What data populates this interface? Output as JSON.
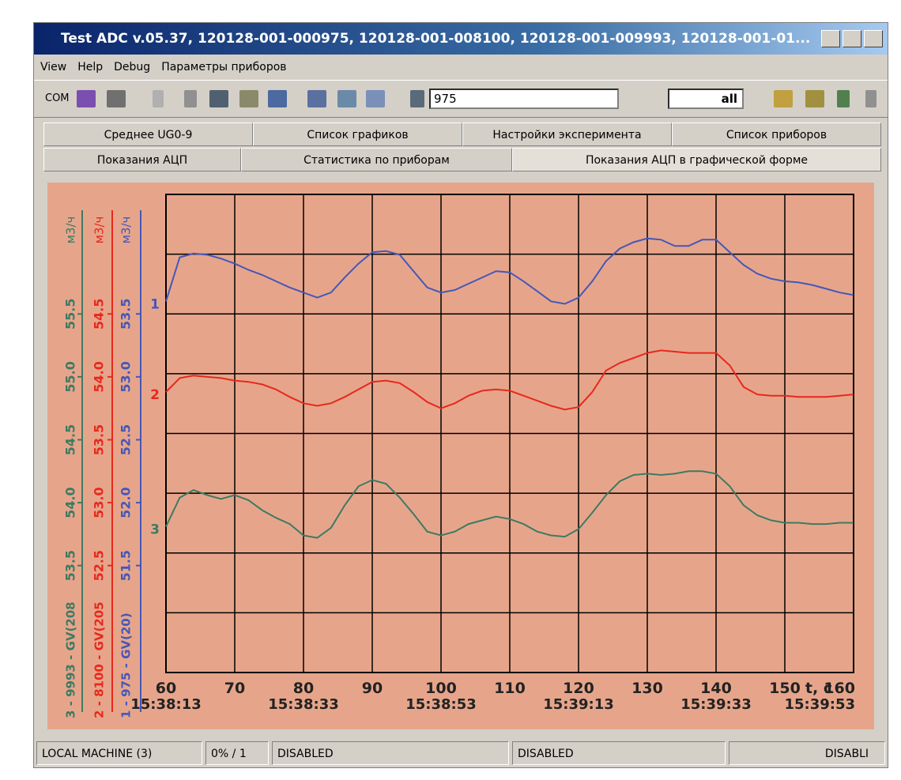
{
  "window": {
    "title": "Test ADC v.05.37, 120128-001-000975, 120128-001-008100, 120128-001-009993, 120128-001-01...",
    "menu": [
      "View",
      "Help",
      "Debug",
      "Параметры приборов"
    ],
    "toolbar": {
      "label": "COM",
      "device": "975",
      "filter": "all"
    },
    "tabs": [
      [
        "Среднее UG0-9",
        "Список графиков",
        "Настройки эксперимента",
        "Список приборов"
      ],
      [
        "Показания АЦП",
        "Статистика по приборам",
        "Показания АЦП в графической форме"
      ]
    ],
    "status": [
      "LOCAL MACHINE (3)",
      "0% / 1",
      "DISABLED",
      "DISABLED",
      "DISABLI"
    ]
  },
  "chart_data": {
    "type": "line",
    "x": [
      60,
      62,
      64,
      66,
      68,
      70,
      72,
      74,
      76,
      78,
      80,
      82,
      84,
      86,
      88,
      90,
      92,
      94,
      96,
      98,
      100,
      102,
      104,
      106,
      108,
      110,
      112,
      114,
      116,
      118,
      120,
      122,
      124,
      126,
      128,
      130,
      132,
      134,
      136,
      138,
      140,
      142,
      144,
      146,
      148,
      150,
      152,
      154,
      156,
      158,
      160
    ],
    "xlim": [
      60,
      160
    ],
    "xticks": [
      60,
      70,
      80,
      90,
      100,
      110,
      120,
      130,
      140,
      150,
      160
    ],
    "time_ticks": [
      {
        "value": 60,
        "label": "15:38:13"
      },
      {
        "value": 80,
        "label": "15:38:33"
      },
      {
        "value": 100,
        "label": "15:38:53"
      },
      {
        "value": 120,
        "label": "15:39:13"
      },
      {
        "value": 140,
        "label": "15:39:33"
      },
      {
        "value": 160,
        "label": "15:39:53"
      }
    ],
    "x_label": "t, c",
    "grid": true,
    "series": [
      {
        "name": "3 - 9993 - GV(208",
        "marker": "3",
        "unit": "м3/ч",
        "color": "#3d7a63",
        "ylim": [
          52.65,
          56.45
        ],
        "yticks": [
          {
            "value": 53.5,
            "label": "53.5"
          },
          {
            "value": 54.0,
            "label": "54.0"
          },
          {
            "value": 54.5,
            "label": "54.5"
          },
          {
            "value": 55.0,
            "label": "55.0"
          },
          {
            "value": 55.5,
            "label": "55.5"
          }
        ],
        "values": [
          53.81,
          54.04,
          54.1,
          54.06,
          54.03,
          54.06,
          54.02,
          53.94,
          53.88,
          53.83,
          53.74,
          53.72,
          53.8,
          53.98,
          54.13,
          54.18,
          54.15,
          54.04,
          53.91,
          53.77,
          53.74,
          53.77,
          53.83,
          53.86,
          53.89,
          53.87,
          53.83,
          53.77,
          53.74,
          53.73,
          53.79,
          53.92,
          54.06,
          54.17,
          54.22,
          54.23,
          54.22,
          54.23,
          54.25,
          54.25,
          54.23,
          54.13,
          53.98,
          53.9,
          53.86,
          53.84,
          53.84,
          53.83,
          53.83,
          53.84,
          53.84
        ]
      },
      {
        "name": "2 - 8100 - GV(205",
        "marker": "2",
        "unit": "м3/ч",
        "color": "#e8281c",
        "ylim": [
          51.65,
          55.45
        ],
        "yticks": [
          {
            "value": 52.5,
            "label": "52.5"
          },
          {
            "value": 53.0,
            "label": "53.0"
          },
          {
            "value": 53.5,
            "label": "53.5"
          },
          {
            "value": 54.0,
            "label": "54.0"
          },
          {
            "value": 54.5,
            "label": "54.5"
          }
        ],
        "values": [
          53.88,
          53.99,
          54.01,
          54.0,
          53.99,
          53.97,
          53.96,
          53.94,
          53.9,
          53.84,
          53.79,
          53.77,
          53.79,
          53.84,
          53.9,
          53.96,
          53.97,
          53.95,
          53.88,
          53.8,
          53.75,
          53.79,
          53.85,
          53.89,
          53.9,
          53.89,
          53.85,
          53.81,
          53.77,
          53.74,
          53.76,
          53.88,
          54.05,
          54.11,
          54.15,
          54.19,
          54.21,
          54.2,
          54.19,
          54.19,
          54.19,
          54.09,
          53.92,
          53.86,
          53.85,
          53.85,
          53.84,
          53.84,
          53.84,
          53.85,
          53.86
        ]
      },
      {
        "name": "1 - 975 - GV(20)",
        "marker": "1",
        "unit": "м3/ч",
        "color": "#4557b8",
        "ylim": [
          50.65,
          54.45
        ],
        "yticks": [
          {
            "value": 51.5,
            "label": "51.5"
          },
          {
            "value": 52.0,
            "label": "52.0"
          },
          {
            "value": 52.5,
            "label": "52.5"
          },
          {
            "value": 53.0,
            "label": "53.0"
          },
          {
            "value": 53.5,
            "label": "53.5"
          }
        ],
        "values": [
          53.6,
          53.95,
          53.98,
          53.97,
          53.94,
          53.9,
          53.85,
          53.81,
          53.76,
          53.71,
          53.67,
          53.63,
          53.67,
          53.79,
          53.9,
          53.99,
          54.0,
          53.97,
          53.84,
          53.71,
          53.67,
          53.69,
          53.74,
          53.79,
          53.84,
          53.83,
          53.76,
          53.68,
          53.6,
          53.58,
          53.63,
          53.76,
          53.92,
          54.02,
          54.07,
          54.1,
          54.09,
          54.04,
          54.04,
          54.09,
          54.09,
          53.99,
          53.89,
          53.82,
          53.78,
          53.76,
          53.75,
          53.73,
          53.7,
          53.67,
          53.65
        ]
      }
    ]
  }
}
